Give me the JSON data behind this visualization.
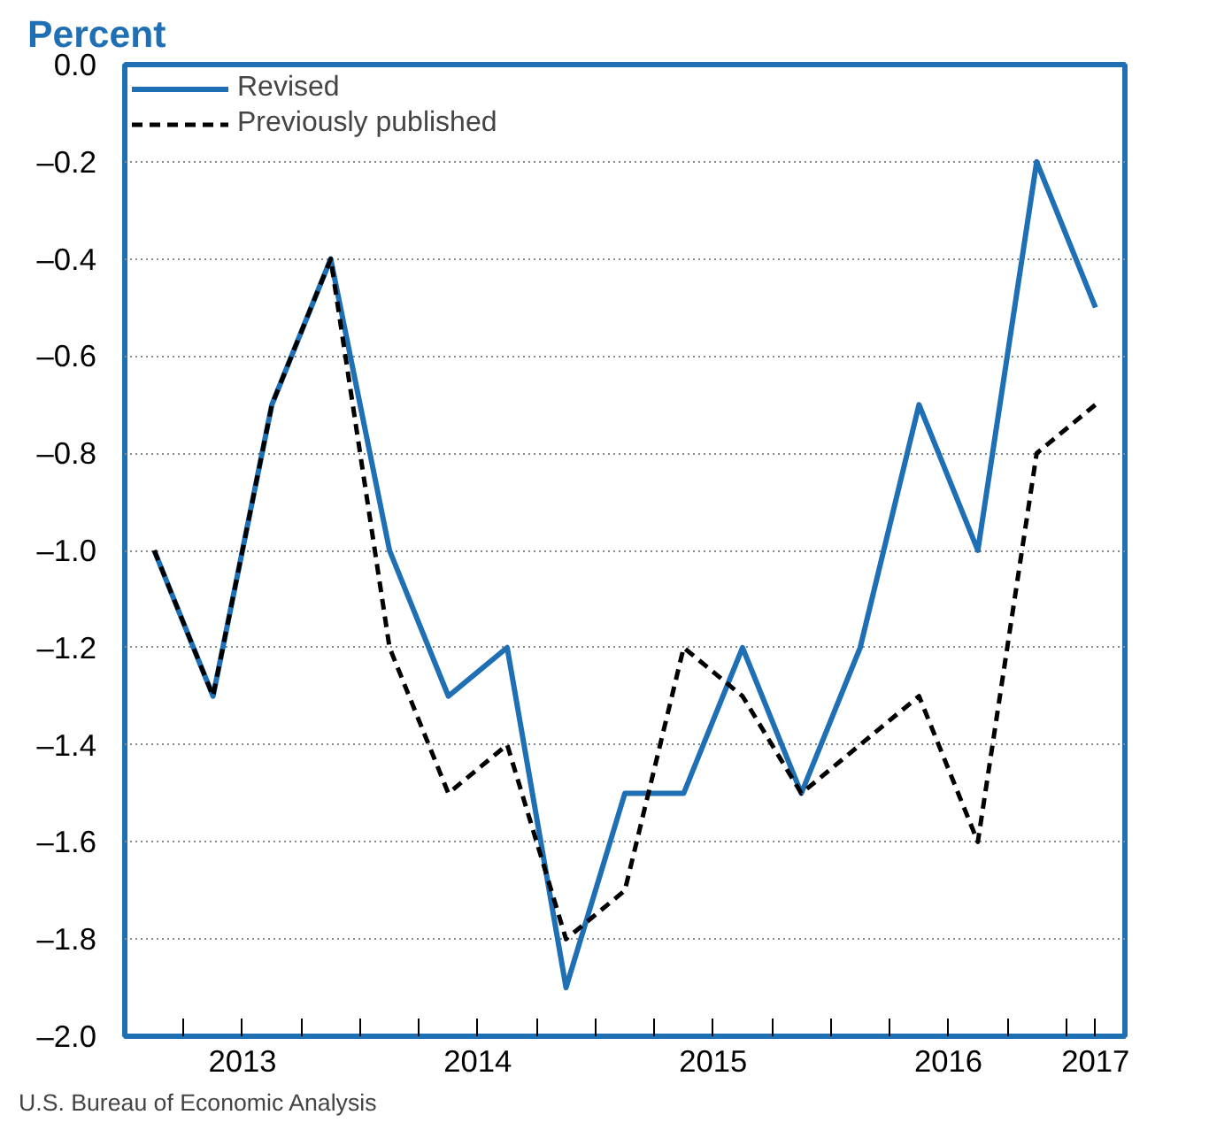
{
  "chart_data": {
    "type": "line",
    "title": "Percent",
    "x": [
      2013.125,
      2013.375,
      2013.625,
      2013.875,
      2014.125,
      2014.375,
      2014.625,
      2014.875,
      2015.125,
      2015.375,
      2015.625,
      2015.875,
      2016.125,
      2016.375,
      2016.625,
      2016.875,
      2017.125
    ],
    "series": [
      {
        "name": "Revised",
        "color": "#1f6fb5",
        "line_style": "solid",
        "values": [
          -1.0,
          -1.3,
          -0.7,
          -0.4,
          -1.0,
          -1.3,
          -1.2,
          -1.9,
          -1.5,
          -1.5,
          -1.2,
          -1.5,
          -1.2,
          -0.7,
          -1.0,
          -0.2,
          -0.5
        ]
      },
      {
        "name": "Previously published",
        "color": "#000000",
        "line_style": "dashed",
        "values": [
          -1.0,
          -1.3,
          -0.7,
          -0.4,
          -1.2,
          -1.5,
          -1.4,
          -1.8,
          -1.7,
          -1.2,
          -1.3,
          -1.5,
          -1.4,
          -1.3,
          -1.6,
          -0.8,
          -0.7
        ]
      }
    ],
    "xlim": [
      2013.0,
      2017.25
    ],
    "xticks": [
      {
        "value": 2013.25,
        "label": null
      },
      {
        "value": 2013.5,
        "label": "2013"
      },
      {
        "value": 2013.75,
        "label": null
      },
      {
        "value": 2014.0,
        "label": null
      },
      {
        "value": 2014.25,
        "label": null
      },
      {
        "value": 2014.5,
        "label": "2014"
      },
      {
        "value": 2014.75,
        "label": null
      },
      {
        "value": 2015.0,
        "label": null
      },
      {
        "value": 2015.25,
        "label": null
      },
      {
        "value": 2015.5,
        "label": "2015"
      },
      {
        "value": 2015.75,
        "label": null
      },
      {
        "value": 2016.0,
        "label": null
      },
      {
        "value": 2016.25,
        "label": null
      },
      {
        "value": 2016.5,
        "label": "2016"
      },
      {
        "value": 2016.75,
        "label": null
      },
      {
        "value": 2017.0,
        "label": null
      },
      {
        "value": 2017.125,
        "label": "2017"
      }
    ],
    "ylim": [
      -2.0,
      0.0
    ],
    "yticks": [
      {
        "value": 0.0,
        "label": "0.0"
      },
      {
        "value": -0.2,
        "label": "–0.2"
      },
      {
        "value": -0.4,
        "label": "–0.4"
      },
      {
        "value": -0.6,
        "label": "–0.6"
      },
      {
        "value": -0.8,
        "label": "–0.8"
      },
      {
        "value": -1.0,
        "label": "–1.0"
      },
      {
        "value": -1.2,
        "label": "–1.2"
      },
      {
        "value": -1.4,
        "label": "–1.4"
      },
      {
        "value": -1.6,
        "label": "–1.6"
      },
      {
        "value": -1.8,
        "label": "–1.8"
      },
      {
        "value": -2.0,
        "label": "–2.0"
      }
    ],
    "grid": "y",
    "legend": "top left",
    "marker": "none",
    "annotations": [
      "U.S. Bureau of Economic Analysis"
    ]
  }
}
